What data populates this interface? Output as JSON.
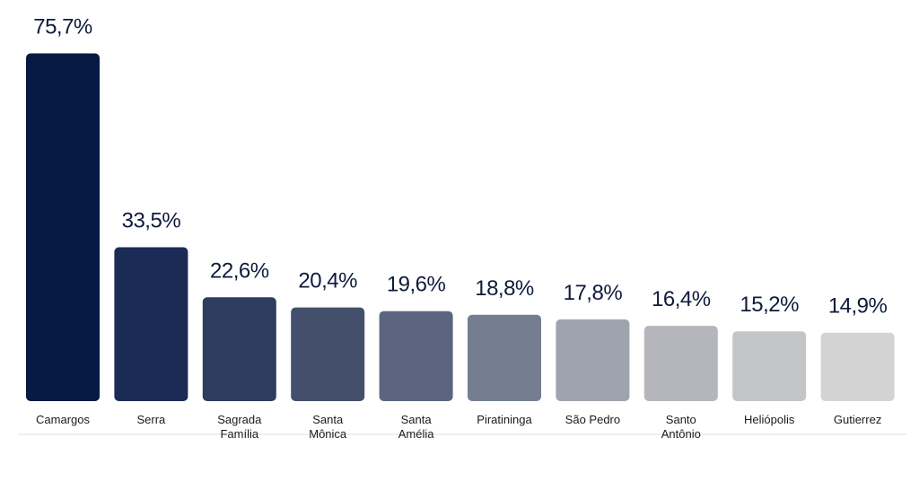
{
  "chart_data": {
    "type": "bar",
    "categories": [
      [
        "Camargos"
      ],
      [
        "Serra"
      ],
      [
        "Sagrada",
        "Família"
      ],
      [
        "Santa",
        "Mônica"
      ],
      [
        "Santa",
        "Amélia"
      ],
      [
        "Piratininga"
      ],
      [
        "São Pedro"
      ],
      [
        "Santo",
        "Antônio"
      ],
      [
        "Heliópolis"
      ],
      [
        "Gutierrez"
      ]
    ],
    "values": [
      75.7,
      33.5,
      22.6,
      20.4,
      19.6,
      18.8,
      17.8,
      16.4,
      15.2,
      14.9
    ],
    "value_labels": [
      "75,7%",
      "33,5%",
      "22,6%",
      "20,4%",
      "19,6%",
      "18,8%",
      "17,8%",
      "16,4%",
      "15,2%",
      "14,9%"
    ],
    "colors": [
      "#061a44",
      "#1b2b55",
      "#2e3c5f",
      "#444f6c",
      "#5c6580",
      "#757e91",
      "#9ea3ad",
      "#b4b6bb",
      "#c4c5c7",
      "#d3d3d3"
    ],
    "title": "",
    "xlabel": "",
    "ylabel": "",
    "ylim": [
      0,
      76
    ],
    "grid": false,
    "legend": "none"
  }
}
